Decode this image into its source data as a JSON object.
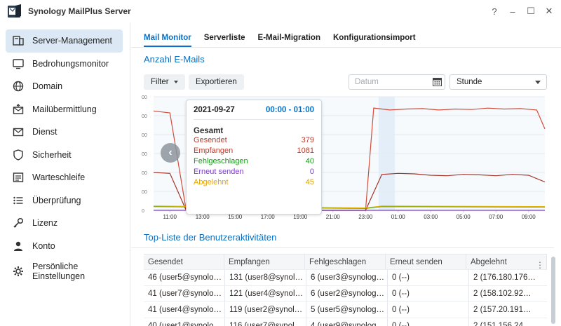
{
  "window": {
    "title": "Synology MailPlus Server",
    "controls": [
      "?",
      "–",
      "☐",
      "✕"
    ]
  },
  "sidebar": {
    "items": [
      {
        "label": "Server-Management",
        "icon": "server-icon",
        "active": true
      },
      {
        "label": "Bedrohungsmonitor",
        "icon": "monitor-icon"
      },
      {
        "label": "Domain",
        "icon": "globe-icon"
      },
      {
        "label": "Mailübermittlung",
        "icon": "mail-upload-icon"
      },
      {
        "label": "Dienst",
        "icon": "mail-icon"
      },
      {
        "label": "Sicherheit",
        "icon": "shield-icon"
      },
      {
        "label": "Warteschleife",
        "icon": "queue-icon"
      },
      {
        "label": "Überprüfung",
        "icon": "list-icon"
      },
      {
        "label": "Lizenz",
        "icon": "key-icon"
      },
      {
        "label": "Konto",
        "icon": "user-icon"
      },
      {
        "label": "Persönliche Einstellungen",
        "icon": "user-gear-icon"
      }
    ]
  },
  "tabs": [
    "Mail Monitor",
    "Serverliste",
    "E-Mail-Migration",
    "Konfigurationsimport"
  ],
  "main": {
    "section_title": "Anzahl E-Mails",
    "filter_label": "Filter",
    "export_label": "Exportieren",
    "date_placeholder": "Datum",
    "interval_value": "Stunde"
  },
  "tooltip": {
    "date": "2021-09-27",
    "time": "00:00 - 01:00",
    "group": "Gesamt",
    "rows": [
      {
        "label": "Gesendet",
        "value": "379",
        "color": "#c0392b"
      },
      {
        "label": "Empfangen",
        "value": "1081",
        "color": "#c0392b"
      },
      {
        "label": "Fehlgeschlagen",
        "value": "40",
        "color": "#1a9a1a"
      },
      {
        "label": "Erneut senden",
        "value": "0",
        "color": "#7a3fc4"
      },
      {
        "label": "Abgelehnt",
        "value": "45",
        "color": "#e2a400"
      }
    ]
  },
  "chart_data": {
    "type": "line",
    "x": [
      "11:00",
      "13:00",
      "15:00",
      "17:00",
      "19:00",
      "21:00",
      "23:00",
      "01:00",
      "03:00",
      "05:00",
      "07:00",
      "09:00"
    ],
    "y_tick_labels": [
      "0",
      "00",
      "00",
      "00",
      "00",
      "00",
      "00"
    ],
    "highlight_x": "00:00",
    "series": [
      {
        "name": "Empfangen",
        "color": "#d14b3a",
        "points": [
          [
            10.0,
            1050
          ],
          [
            11.0,
            1030
          ],
          [
            12.0,
            0
          ],
          [
            23.0,
            0
          ],
          [
            23.5,
            1081
          ],
          [
            24.5,
            1060
          ],
          [
            25.5,
            1070
          ],
          [
            26.5,
            1075
          ],
          [
            27.5,
            1060
          ],
          [
            28.5,
            1070
          ],
          [
            29.5,
            1065
          ],
          [
            30.5,
            1080
          ],
          [
            31.5,
            1070
          ],
          [
            32.5,
            1075
          ],
          [
            33.5,
            1060
          ],
          [
            34.0,
            860
          ]
        ]
      },
      {
        "name": "Gesendet",
        "color": "#a5342a",
        "points": [
          [
            10.0,
            400
          ],
          [
            11.0,
            390
          ],
          [
            12.0,
            0
          ],
          [
            23.0,
            0
          ],
          [
            24.0,
            379
          ],
          [
            25.0,
            390
          ],
          [
            26.0,
            385
          ],
          [
            27.0,
            370
          ],
          [
            28.0,
            365
          ],
          [
            29.0,
            380
          ],
          [
            30.0,
            375
          ],
          [
            31.0,
            365
          ],
          [
            32.0,
            380
          ],
          [
            33.0,
            370
          ],
          [
            34.0,
            300
          ]
        ]
      },
      {
        "name": "Fehlgeschlagen",
        "color": "#2ca02c",
        "points": [
          [
            10.0,
            40
          ],
          [
            23.0,
            20
          ],
          [
            24.0,
            40
          ],
          [
            34.0,
            35
          ]
        ]
      },
      {
        "name": "Abgelehnt",
        "color": "#e2b400",
        "points": [
          [
            10.0,
            45
          ],
          [
            23.0,
            25
          ],
          [
            24.0,
            45
          ],
          [
            34.0,
            40
          ]
        ]
      },
      {
        "name": "Erneut senden",
        "color": "#7a3fc4",
        "points": [
          [
            10.0,
            0
          ],
          [
            34.0,
            0
          ]
        ]
      }
    ],
    "ylim": [
      0,
      1200
    ]
  },
  "table": {
    "title": "Top-Liste der Benutzeraktivitäten",
    "headers": [
      "Gesendet",
      "Empfangen",
      "Fehlgeschlagen",
      "Erneut senden",
      "Abgelehnt"
    ],
    "rows": [
      [
        "46 (user5@synolo…",
        "131 (user8@synol…",
        "6 (user3@synolog…",
        "0 (--)",
        "2 (176.180.176…"
      ],
      [
        "41 (user7@synolo…",
        "121 (user4@synol…",
        "6 (user2@synolog…",
        "0 (--)",
        "2 (158.102.92…"
      ],
      [
        "41 (user4@synolo…",
        "119 (user2@synol…",
        "5 (user5@synolog…",
        "0 (--)",
        "2 (157.20.191…"
      ],
      [
        "40 (user1@synolo…",
        "116 (user7@synol…",
        "4 (user9@synolog…",
        "0 (--)",
        "2 (151.156.24…"
      ]
    ]
  }
}
